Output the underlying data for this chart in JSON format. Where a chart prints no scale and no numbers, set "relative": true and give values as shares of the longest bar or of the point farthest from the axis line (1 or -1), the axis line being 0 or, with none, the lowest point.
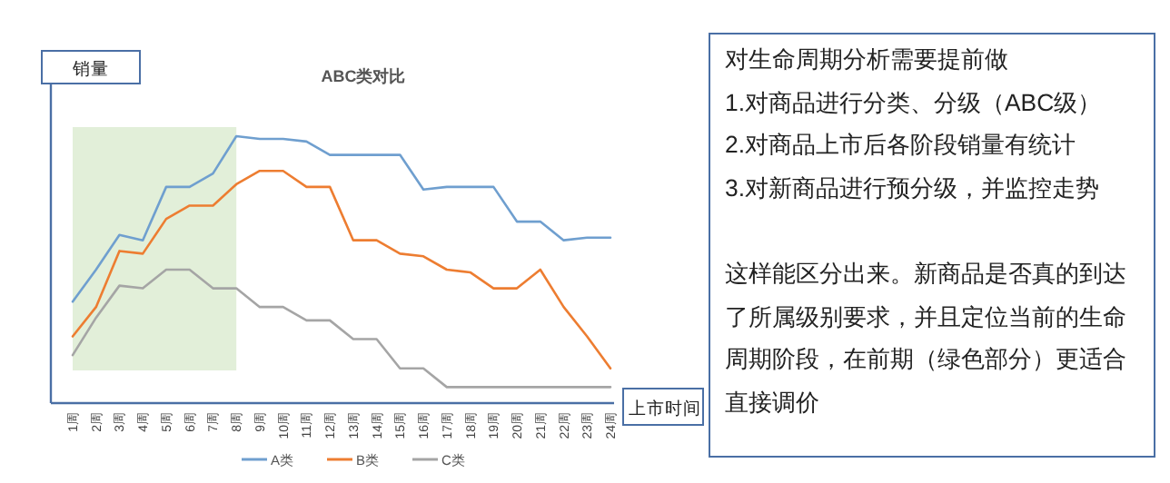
{
  "chart_data": {
    "type": "line",
    "title": "ABC类对比",
    "xlabel": "上市时间",
    "ylabel": "销量",
    "relative": true,
    "legend": "bottom",
    "categories": [
      "1周",
      "2周",
      "3周",
      "4周",
      "5周",
      "6周",
      "7周",
      "8周",
      "9周",
      "10周",
      "11周",
      "12周",
      "13周",
      "14周",
      "15周",
      "16周",
      "17周",
      "18周",
      "19周",
      "20周",
      "21周",
      "22周",
      "23周",
      "24周"
    ],
    "series": [
      {
        "name": "A类",
        "color": "#6f9fcf",
        "values": [
          0.38,
          0.5,
          0.63,
          0.61,
          0.81,
          0.81,
          0.86,
          1,
          0.99,
          0.99,
          0.98,
          0.93,
          0.93,
          0.93,
          0.93,
          0.8,
          0.81,
          0.81,
          0.81,
          0.68,
          0.68,
          0.61,
          0.62,
          0.62
        ]
      },
      {
        "name": "B类",
        "color": "#ed7d31",
        "values": [
          0.25,
          0.36,
          0.57,
          0.56,
          0.69,
          0.74,
          0.74,
          0.82,
          0.87,
          0.87,
          0.81,
          0.81,
          0.61,
          0.61,
          0.56,
          0.55,
          0.5,
          0.49,
          0.43,
          0.43,
          0.5,
          0.36,
          0.25,
          0.13
        ]
      },
      {
        "name": "C类",
        "color": "#a5a5a5",
        "values": [
          0.18,
          0.32,
          0.44,
          0.43,
          0.5,
          0.5,
          0.43,
          0.43,
          0.36,
          0.36,
          0.31,
          0.31,
          0.24,
          0.24,
          0.13,
          0.13,
          0.06,
          0.06,
          0.06,
          0.06,
          0.06,
          0.06,
          0.06,
          0.06
        ]
      }
    ],
    "bands": [
      {
        "axis": "x",
        "from": "1周",
        "to": "8周",
        "color": "#e2efd9"
      }
    ],
    "annotations": [
      "对生命周期分析需要提前做",
      "1.对商品进行分类、分级（ABC级）",
      "2.对商品上市后各阶段销量有统计",
      "3.对新商品进行预分级，并监控走势",
      "这样能区分出来。新商品是否真的到达了所属级别要求，并且定位当前的生命周期阶段，在前期（绿色部分）更适合直接调价"
    ]
  }
}
